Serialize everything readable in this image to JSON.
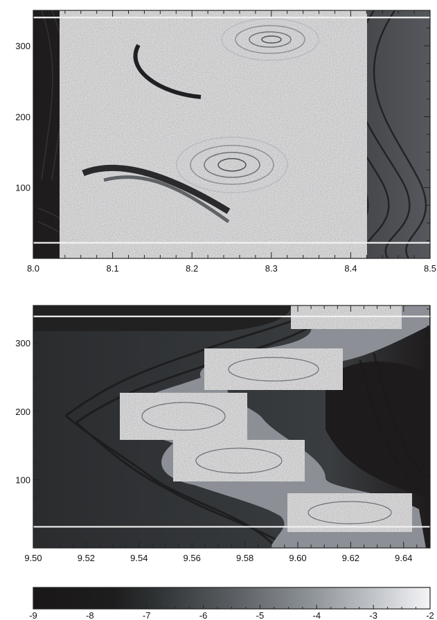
{
  "chart_data": [
    {
      "type": "heatmap",
      "panel": "top",
      "xlim": [
        8.0,
        8.5
      ],
      "ylim": [
        0,
        350
      ],
      "x_ticks": [
        "8.0",
        "8.1",
        "8.2",
        "8.3",
        "8.4",
        "8.5"
      ],
      "y_ticks": [
        "100",
        "200",
        "300"
      ],
      "x_tick_values": [
        8.0,
        8.1,
        8.2,
        8.3,
        8.4,
        8.5
      ],
      "y_tick_values": [
        100,
        200,
        300
      ],
      "horizontal_lines": [
        22,
        340
      ],
      "vortex_centers": [
        {
          "x": 8.235,
          "y": 135
        },
        {
          "x": 8.31,
          "y": 315
        }
      ],
      "colormap": [
        "#1a1718",
        "#2a2b2c",
        "#55595e",
        "#9aa0a6",
        "#f4f4f6"
      ],
      "grid": false
    },
    {
      "type": "heatmap",
      "panel": "middle",
      "xlim": [
        9.5,
        9.65
      ],
      "ylim": [
        0,
        355
      ],
      "x_ticks": [
        "9.50",
        "9.52",
        "9.54",
        "9.56",
        "9.58",
        "9.60",
        "9.62",
        "9.64"
      ],
      "y_ticks": [
        "100",
        "200",
        "300"
      ],
      "x_tick_values": [
        9.5,
        9.52,
        9.54,
        9.56,
        9.58,
        9.6,
        9.62,
        9.64
      ],
      "y_tick_values": [
        100,
        200,
        300
      ],
      "horizontal_lines": [
        31,
        339
      ],
      "vortex_centers": [
        {
          "x": 9.562,
          "y": 198
        },
        {
          "x": 9.588,
          "y": 130
        },
        {
          "x": 9.596,
          "y": 268
        },
        {
          "x": 9.627,
          "y": 58
        },
        {
          "x": 9.625,
          "y": 344
        }
      ],
      "colormap": [
        "#1a1718",
        "#2a2b2c",
        "#55595e",
        "#9aa0a6",
        "#f4f4f6"
      ],
      "grid": false
    },
    {
      "type": "colorbar",
      "panel": "bottom",
      "range": [
        -9,
        -2
      ],
      "ticks": [
        "-9",
        "-8",
        "-7",
        "-6",
        "-5",
        "-4",
        "-3",
        "-2"
      ],
      "tick_values": [
        -9,
        -8,
        -7,
        -6,
        -5,
        -4,
        -3,
        -2
      ],
      "colormap": [
        "#1a1718",
        "#1d1d1e",
        "#2d3032",
        "#595d61",
        "#8e9397",
        "#c1c5c9",
        "#f4f4f6"
      ]
    }
  ],
  "colors": {
    "dark": "#1c1a1b",
    "mid": "#3b3e41",
    "bright": "#f2f2f2",
    "axis": "#222222"
  }
}
